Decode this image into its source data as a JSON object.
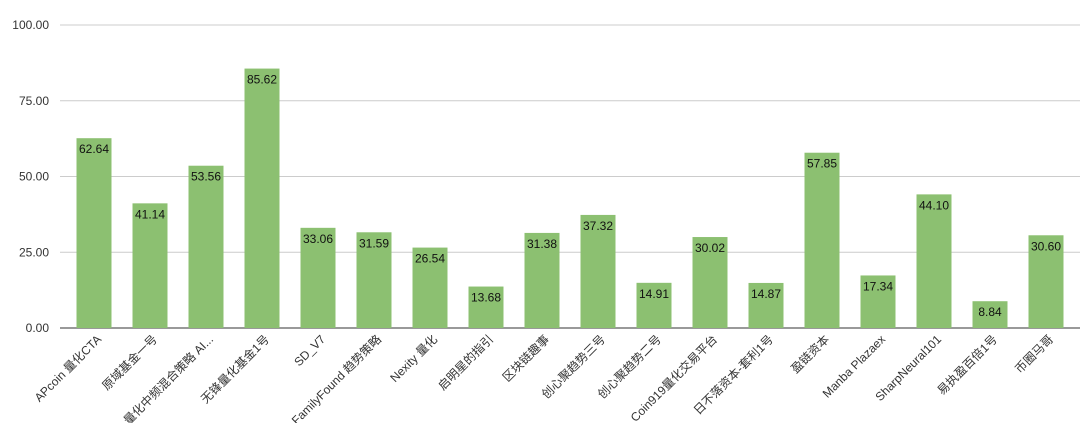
{
  "chart_data": {
    "type": "bar",
    "title": "",
    "xlabel": "",
    "ylabel": "",
    "categories": [
      "APcoin 量化CTA",
      "原域基金一号",
      "量化中频混合策略 AI...",
      "无锋量化基金1号",
      "SD_V7",
      "FamilyFound 趋势策略",
      "Nexity 量化",
      "启明星的指引",
      "区块链趣事",
      "创心聚趋势三号",
      "创心聚趋势二号",
      "Coin919量化交易平台",
      "日不落资本-套利1号",
      "盈链资本",
      "Manba Plazaex",
      "SharpNeural101",
      "易执盈百倍1号",
      "币圈马哥"
    ],
    "values": [
      62.64,
      41.14,
      53.56,
      85.62,
      33.06,
      31.59,
      26.54,
      13.68,
      31.38,
      37.32,
      14.91,
      30.02,
      14.87,
      57.85,
      17.34,
      44.1,
      8.84,
      30.6
    ],
    "ylim": [
      0,
      100
    ],
    "yticks": [
      "0.00",
      "25.00",
      "50.00",
      "75.00",
      "100.00"
    ],
    "grid": true,
    "legend": "none",
    "bar_color": "#8cc071",
    "grid_color": "#cccccc",
    "axis_color": "#333333"
  }
}
